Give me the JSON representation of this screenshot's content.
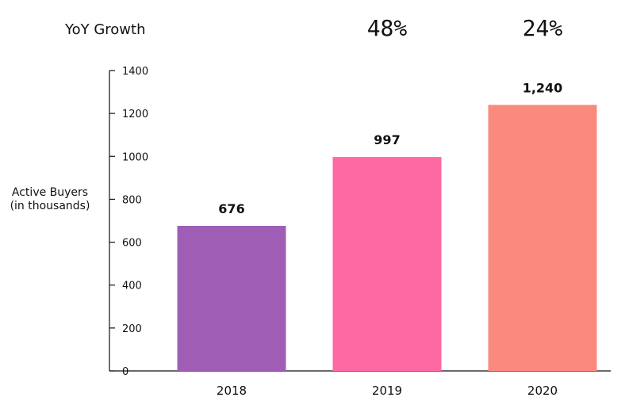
{
  "growth_header": {
    "title": "YoY Growth",
    "values": [
      "",
      "48%",
      "24%"
    ]
  },
  "chart_data": {
    "type": "bar",
    "title": "",
    "xlabel": "",
    "ylabel_lines": [
      "Active Buyers",
      "(in thousands)"
    ],
    "categories": [
      "2018",
      "2019",
      "2020"
    ],
    "values": [
      676,
      997,
      1240
    ],
    "value_labels": [
      "676",
      "997",
      "1,240"
    ],
    "colors": [
      "#a05db5",
      "#ff69a3",
      "#fa8a7e"
    ],
    "ylim": [
      0,
      1400
    ],
    "yticks": [
      0,
      200,
      400,
      600,
      800,
      1000,
      1200,
      1400
    ],
    "grid": false
  }
}
